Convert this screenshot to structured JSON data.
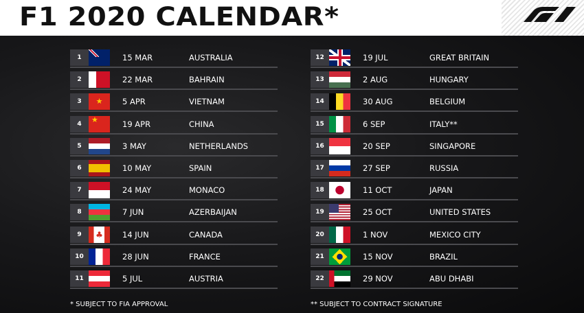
{
  "header": {
    "title": "F1 2020 CALENDAR*",
    "logo": "F1"
  },
  "races_left": [
    {
      "round": "1",
      "date": "15 MAR",
      "country": "AUSTRALIA",
      "flag": "australia"
    },
    {
      "round": "2",
      "date": "22 MAR",
      "country": "BAHRAIN",
      "flag": "bahrain"
    },
    {
      "round": "3",
      "date": "5 APR",
      "country": "VIETNAM",
      "flag": "vietnam"
    },
    {
      "round": "4",
      "date": "19 APR",
      "country": "CHINA",
      "flag": "china"
    },
    {
      "round": "5",
      "date": "3 MAY",
      "country": "NETHERLANDS",
      "flag": "netherlands"
    },
    {
      "round": "6",
      "date": "10 MAY",
      "country": "SPAIN",
      "flag": "spain"
    },
    {
      "round": "7",
      "date": "24 MAY",
      "country": "MONACO",
      "flag": "monaco"
    },
    {
      "round": "8",
      "date": "7 JUN",
      "country": "AZERBAIJAN",
      "flag": "azerbaijan"
    },
    {
      "round": "9",
      "date": "14 JUN",
      "country": "CANADA",
      "flag": "canada"
    },
    {
      "round": "10",
      "date": "28 JUN",
      "country": "FRANCE",
      "flag": "france"
    },
    {
      "round": "11",
      "date": "5 JUL",
      "country": "AUSTRIA",
      "flag": "austria"
    }
  ],
  "races_right": [
    {
      "round": "12",
      "date": "19 JUL",
      "country": "GREAT BRITAIN",
      "flag": "great-britain"
    },
    {
      "round": "13",
      "date": "2 AUG",
      "country": "HUNGARY",
      "flag": "hungary"
    },
    {
      "round": "14",
      "date": "30 AUG",
      "country": "BELGIUM",
      "flag": "belgium"
    },
    {
      "round": "15",
      "date": "6 SEP",
      "country": "ITALY**",
      "flag": "italy"
    },
    {
      "round": "16",
      "date": "20 SEP",
      "country": "SINGAPORE",
      "flag": "singapore"
    },
    {
      "round": "17",
      "date": "27 SEP",
      "country": "RUSSIA",
      "flag": "russia"
    },
    {
      "round": "18",
      "date": "11 OCT",
      "country": "JAPAN",
      "flag": "japan"
    },
    {
      "round": "19",
      "date": "25 OCT",
      "country": "UNITED STATES",
      "flag": "united-states"
    },
    {
      "round": "20",
      "date": "1 NOV",
      "country": "MEXICO CITY",
      "flag": "mexico"
    },
    {
      "round": "21",
      "date": "15 NOV",
      "country": "BRAZIL",
      "flag": "brazil"
    },
    {
      "round": "22",
      "date": "29 NOV",
      "country": "ABU DHABI",
      "flag": "abu-dhabi"
    }
  ],
  "footnotes": {
    "left": "* SUBJECT TO FIA APPROVAL",
    "right": "** SUBJECT TO CONTRACT SIGNATURE"
  }
}
